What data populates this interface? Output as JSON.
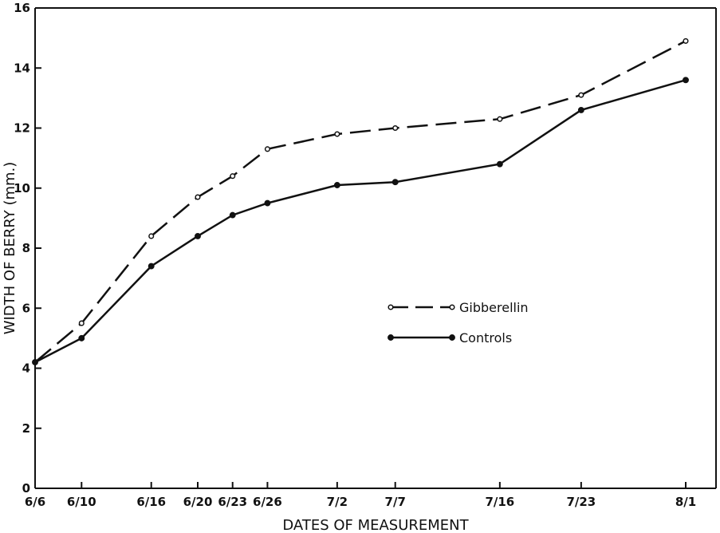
{
  "chart_data": {
    "type": "line",
    "xlabel": "DATES OF MEASUREMENT",
    "ylabel": "WIDTH OF BERRY (mm.)",
    "ylim": [
      0,
      16
    ],
    "yticks": [
      "0",
      "2",
      "4",
      "6",
      "8",
      "10",
      "12",
      "14",
      "16"
    ],
    "x_day_values": [
      0,
      4,
      10,
      14,
      17,
      20,
      26,
      31,
      40,
      47,
      56
    ],
    "categories": [
      "6/6",
      "6/10",
      "6/16",
      "6/20",
      "6/23",
      "6/26",
      "7/2",
      "7/7",
      "7/16",
      "7/23",
      "8/1"
    ],
    "grid": false,
    "legend_position": "center-right",
    "series": [
      {
        "name": "Gibberellin",
        "style": "dashed",
        "marker": "open-circle",
        "values": [
          4.2,
          5.5,
          8.4,
          9.7,
          10.4,
          11.3,
          11.8,
          12.0,
          12.3,
          13.1,
          14.9
        ]
      },
      {
        "name": "Controls",
        "style": "solid",
        "marker": "filled-circle",
        "values": [
          4.2,
          5.0,
          7.4,
          8.4,
          9.1,
          9.5,
          10.1,
          10.2,
          10.8,
          12.6,
          13.6
        ]
      }
    ]
  }
}
